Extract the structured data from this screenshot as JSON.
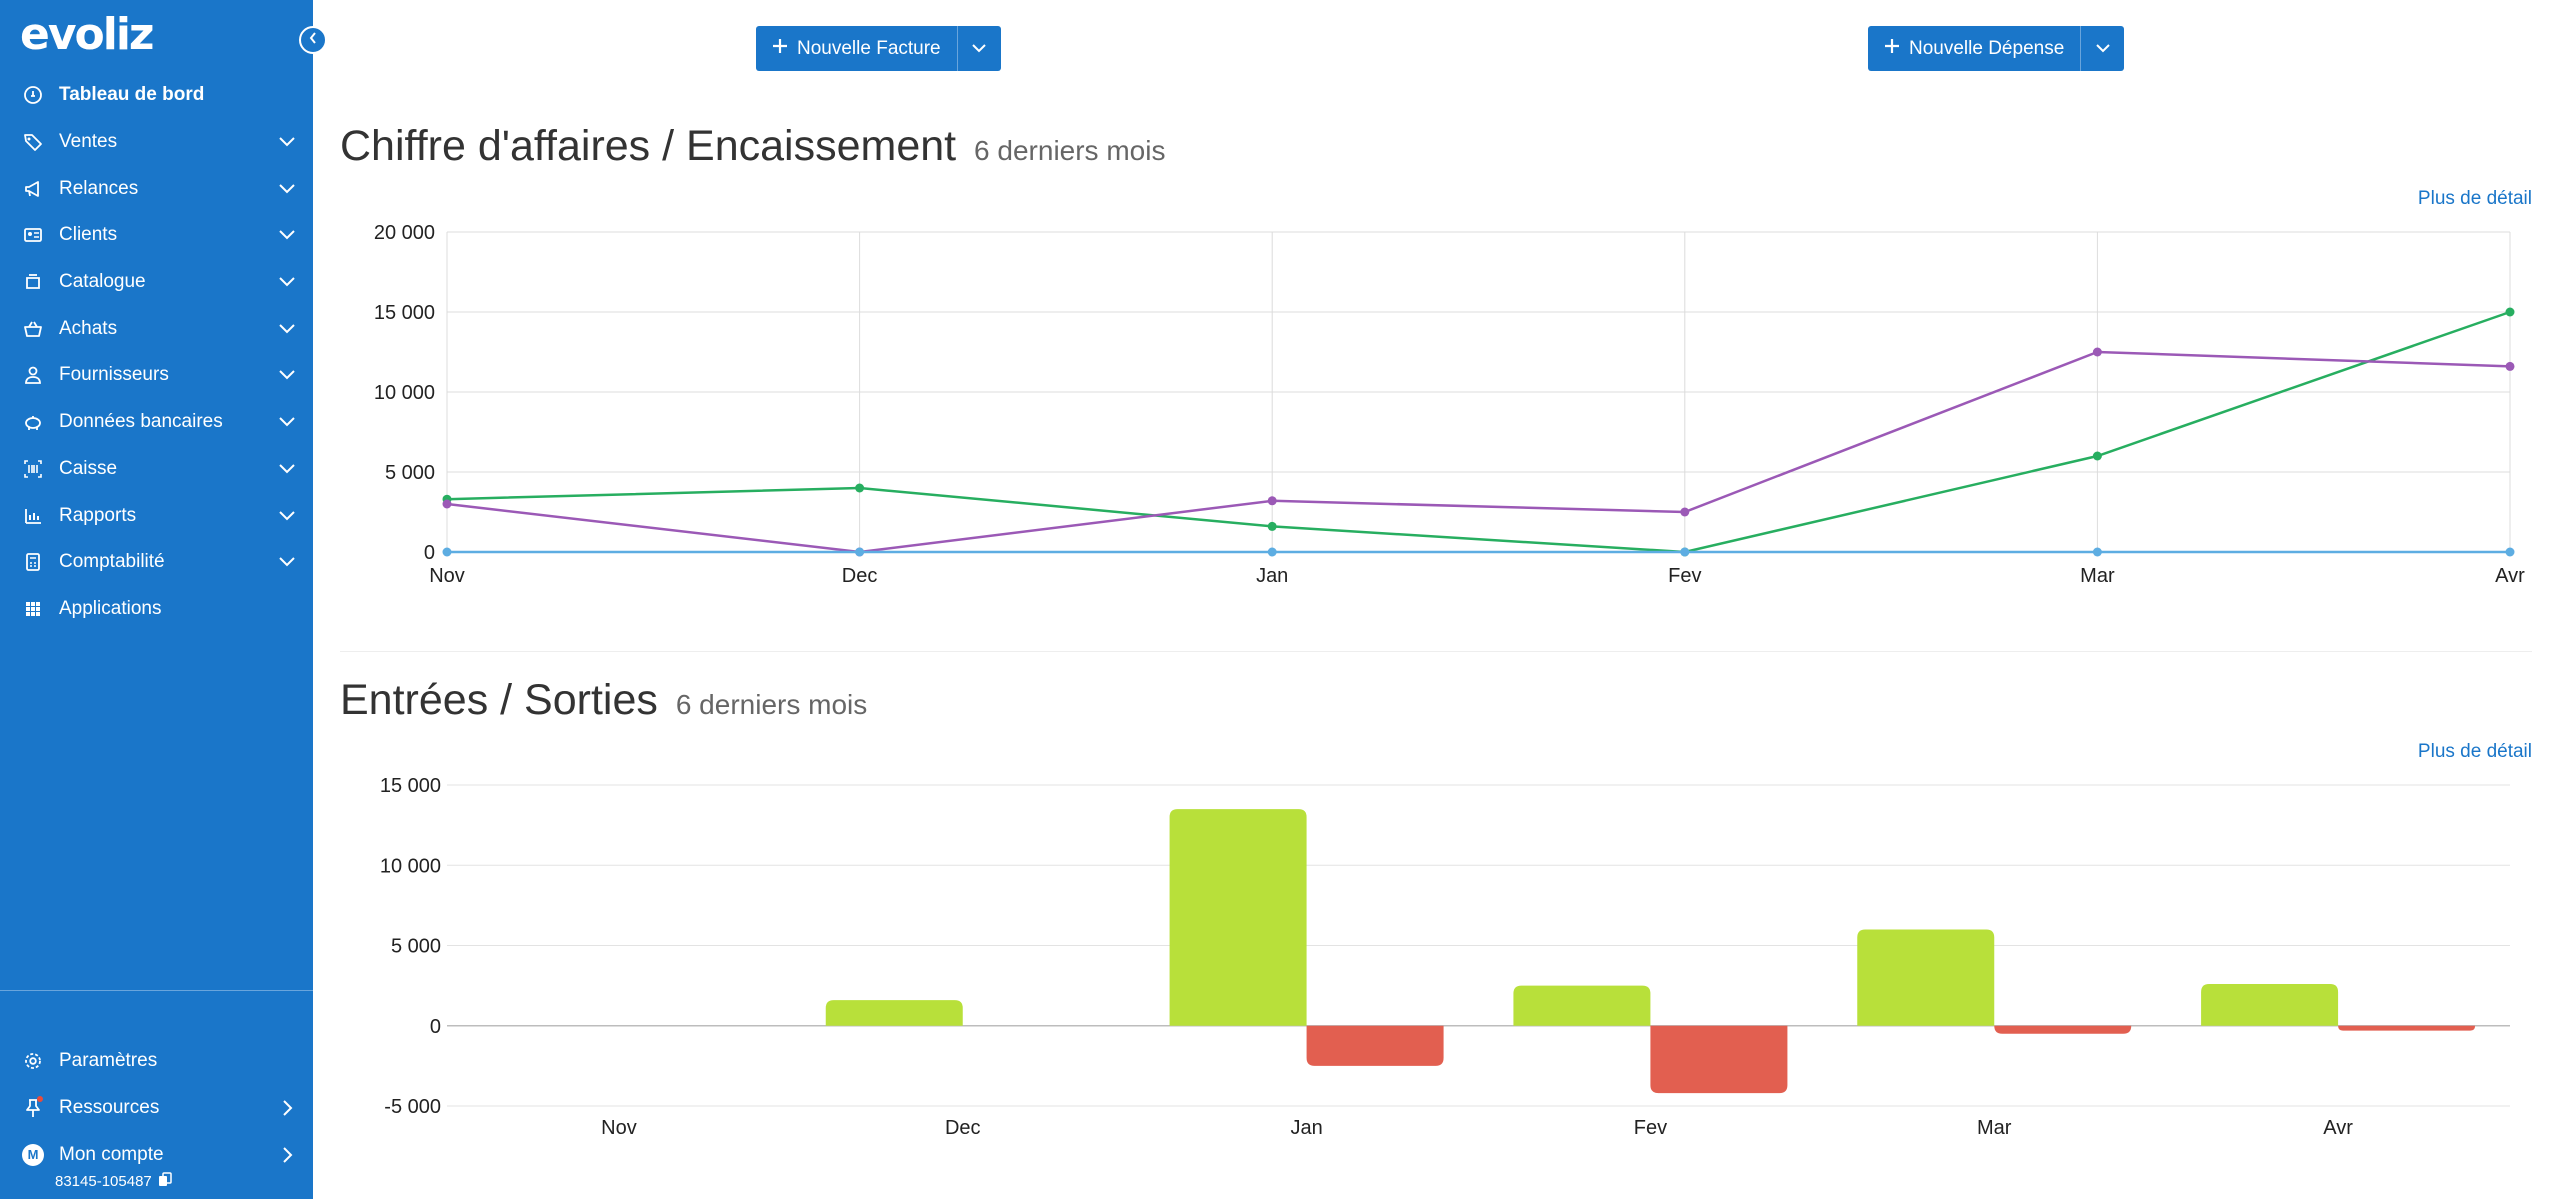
{
  "app": {
    "logo_text": "evoliz"
  },
  "sidebar": {
    "items": [
      {
        "label": "Tableau de bord",
        "icon": "dashboard-icon",
        "active": true,
        "chevron": false
      },
      {
        "label": "Ventes",
        "icon": "tag-icon",
        "chevron": true
      },
      {
        "label": "Relances",
        "icon": "megaphone-icon",
        "chevron": true
      },
      {
        "label": "Clients",
        "icon": "contact-card-icon",
        "chevron": true
      },
      {
        "label": "Catalogue",
        "icon": "catalog-icon",
        "chevron": true
      },
      {
        "label": "Achats",
        "icon": "basket-icon",
        "chevron": true
      },
      {
        "label": "Fournisseurs",
        "icon": "supplier-icon",
        "chevron": true
      },
      {
        "label": "Données bancaires",
        "icon": "piggy-bank-icon",
        "chevron": true
      },
      {
        "label": "Caisse",
        "icon": "barcode-icon",
        "chevron": true
      },
      {
        "label": "Rapports",
        "icon": "bar-chart-icon",
        "chevron": true
      },
      {
        "label": "Comptabilité",
        "icon": "calculator-icon",
        "chevron": true
      },
      {
        "label": "Applications",
        "icon": "grid-icon",
        "chevron": false
      }
    ],
    "bottom": {
      "settings_label": "Paramètres",
      "resources_label": "Ressources",
      "account_label": "Mon compte",
      "account_initial": "M",
      "account_id": "83145-105487"
    }
  },
  "actions": {
    "new_invoice_label": "Nouvelle Facture",
    "new_expense_label": "Nouvelle Dépense"
  },
  "revenue_section": {
    "title": "Chiffre d'affaires / Encaissement",
    "subtitle": "6 derniers mois",
    "more_link": "Plus de détail"
  },
  "cashflow_section": {
    "title": "Entrées / Sorties",
    "subtitle": "6 derniers mois",
    "more_link": "Plus de détail"
  },
  "colors": {
    "sidebar": "#1a76c9",
    "accent": "#1a76c9",
    "line_green": "#27ae60",
    "line_purple": "#9b59b6",
    "line_teal": "#5dade2",
    "bar_in": "#b8e03a",
    "bar_out": "#e25f50"
  },
  "chart_data": [
    {
      "type": "line",
      "categories": [
        "Nov",
        "Dec",
        "Jan",
        "Fev",
        "Mar",
        "Avr"
      ],
      "ylim": [
        0,
        20000
      ],
      "yticks": [
        "0",
        "5 000",
        "10 000",
        "15 000",
        "20 000"
      ],
      "ytick_values": [
        0,
        5000,
        10000,
        15000,
        20000
      ],
      "grid": true,
      "series": [
        {
          "values": [
            3300,
            4000,
            1600,
            0,
            6000,
            15000
          ],
          "color": "#27ae60"
        },
        {
          "values": [
            3000,
            0,
            3200,
            2500,
            12500,
            11600
          ],
          "color": "#9b59b6"
        },
        {
          "values": [
            0,
            0,
            0,
            0,
            0,
            0
          ],
          "color": "#5dade2"
        }
      ]
    },
    {
      "type": "bar",
      "categories": [
        "Nov",
        "Dec",
        "Jan",
        "Fev",
        "Mar",
        "Avr"
      ],
      "ylim": [
        -5000,
        15000
      ],
      "yticks": [
        "-5 000",
        "0",
        "5 000",
        "10 000",
        "15 000"
      ],
      "ytick_values": [
        -5000,
        0,
        5000,
        10000,
        15000
      ],
      "grid": true,
      "series": [
        {
          "values": [
            0,
            1600,
            13500,
            2500,
            6000,
            2600
          ],
          "color": "#b8e03a"
        },
        {
          "values": [
            0,
            0,
            -2500,
            -4200,
            -500,
            -300
          ],
          "color": "#e25f50"
        }
      ]
    }
  ]
}
